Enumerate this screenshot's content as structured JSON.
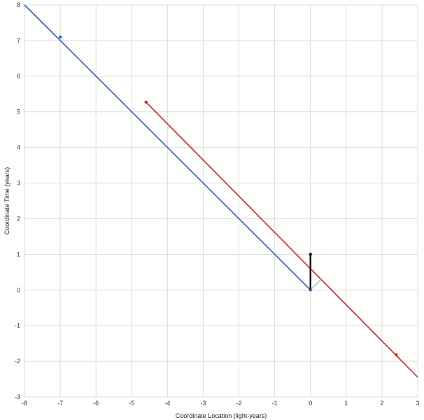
{
  "chart_data": {
    "type": "line",
    "xlabel": "Coordinate Location (light-years)",
    "ylabel": "Coordinate Time (years)",
    "xlim": [
      -8,
      3
    ],
    "ylim": [
      -3,
      8
    ],
    "x_ticks": [
      -8,
      -7,
      -6,
      -5,
      -4,
      -3,
      -2,
      -1,
      0,
      1,
      2,
      3
    ],
    "y_ticks": [
      -3,
      -2,
      -1,
      0,
      1,
      2,
      3,
      4,
      5,
      6,
      7,
      8
    ],
    "grid": true,
    "series": [
      {
        "color": "#2a62c9",
        "points": [
          [
            -8,
            8
          ],
          [
            0,
            0
          ]
        ],
        "markers": [
          [
            -7,
            7.1
          ],
          [
            0,
            0
          ]
        ]
      },
      {
        "color": "#e8201a",
        "points": [
          [
            -4.6,
            5.27
          ],
          [
            3,
            -2.45
          ]
        ],
        "markers": [
          [
            -4.6,
            5.27
          ],
          [
            2.4,
            -1.82
          ]
        ]
      },
      {
        "color": "#111111",
        "points": [
          [
            0,
            0
          ],
          [
            0,
            1
          ]
        ],
        "markers": [
          [
            0,
            1
          ]
        ]
      },
      {
        "color": "#7b9fdc",
        "points": [
          [
            0,
            0
          ],
          [
            0.3,
            0.3
          ]
        ],
        "markers": []
      }
    ]
  }
}
